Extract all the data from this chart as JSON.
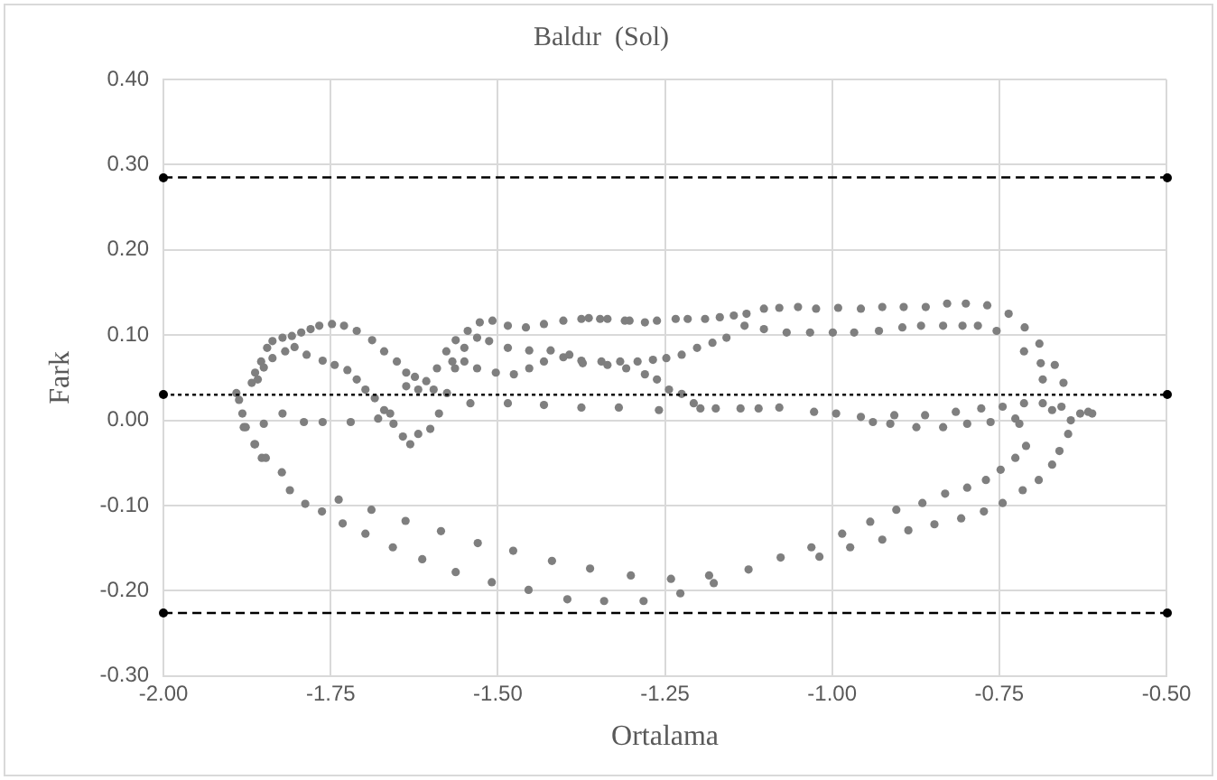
{
  "chart_data": {
    "type": "scatter",
    "title": "Baldır  (Sol)",
    "xlabel": "Ortalama",
    "ylabel": "Fark",
    "x": [
      -1.88,
      -1.864,
      -1.853,
      -1.823,
      -1.811,
      -1.788,
      -1.763,
      -1.738,
      -1.732,
      -1.698,
      -1.689,
      -1.657,
      -1.638,
      -1.613,
      -1.585,
      -1.563,
      -1.53,
      -1.509,
      -1.477,
      -1.454,
      -1.419,
      -1.396,
      -1.362,
      -1.341,
      -1.301,
      -1.282,
      -1.241,
      -1.227,
      -1.184,
      -1.177,
      -1.125,
      -1.077,
      -1.031,
      -1.019,
      -0.985,
      -0.973,
      -0.943,
      -0.925,
      -0.904,
      -0.886,
      -0.865,
      -0.847,
      -0.831,
      -0.807,
      -0.798,
      -0.773,
      -0.77,
      -0.745,
      -0.748,
      -0.726,
      -0.715,
      -0.71,
      -0.691,
      -0.671,
      -0.66,
      -0.647,
      -0.643,
      -0.629,
      -0.617,
      -0.611,
      -0.657,
      -0.671,
      -0.685,
      -0.685,
      -0.688,
      -0.69,
      -0.667,
      -0.654,
      -0.712,
      -0.713,
      -0.72,
      -0.736,
      -0.768,
      -0.8,
      -0.828,
      -0.86,
      -0.893,
      -0.925,
      -0.957,
      -0.991,
      -1.024,
      -1.051,
      -1.079,
      -1.102,
      -1.128,
      -1.147,
      -1.168,
      -1.19,
      -1.216,
      -1.234,
      -1.262,
      -1.28,
      -1.303,
      -1.336,
      -1.364,
      -0.754,
      -0.782,
      -0.805,
      -0.834,
      -0.867,
      -0.895,
      -0.93,
      -0.967,
      -0.999,
      -1.033,
      -1.068,
      -1.102,
      -1.131,
      -1.158,
      -1.179,
      -1.202,
      -1.225,
      -1.248,
      -1.268,
      -1.291,
      -1.317,
      -1.345,
      -1.244,
      -1.225,
      -1.207,
      -1.197,
      -1.174,
      -1.137,
      -1.11,
      -1.079,
      -1.027,
      -0.994,
      -0.957,
      -0.939,
      -0.913,
      -0.907,
      -0.874,
      -0.861,
      -0.834,
      -0.815,
      -0.798,
      -0.777,
      -0.763,
      -0.745,
      -0.726,
      -0.713,
      -1.373,
      -1.336,
      -1.308,
      -1.28,
      -1.262,
      -1.891,
      -1.887,
      -1.882,
      -1.877,
      -1.868,
      -1.863,
      -1.854,
      -1.845,
      -1.837,
      -1.822,
      -1.808,
      -1.794,
      -1.78,
      -1.767,
      -1.748,
      -1.73,
      -1.711,
      -1.688,
      -1.67,
      -1.651,
      -1.637,
      -1.624,
      -1.607,
      -1.591,
      -1.577,
      -1.563,
      -1.545,
      -1.527,
      -1.508,
      -1.485,
      -1.458,
      -1.431,
      -1.402,
      -1.375,
      -1.347,
      -1.31,
      -1.859,
      -1.85,
      -1.837,
      -1.818,
      -1.804,
      -1.786,
      -1.762,
      -1.744,
      -1.725,
      -1.711,
      -1.698,
      -1.684,
      -1.67,
      -1.656,
      -1.642,
      -1.631,
      -1.619,
      -1.601,
      -1.588,
      -1.576,
      -1.564,
      -1.55,
      -1.531,
      -1.513,
      -1.485,
      -1.453,
      -1.421,
      -1.393,
      -1.596,
      -1.568,
      -1.55,
      -1.531,
      -1.503,
      -1.476,
      -1.453,
      -1.431,
      -1.402,
      -1.375,
      -1.85,
      -1.822,
      -1.79,
      -1.762,
      -1.72,
      -1.679,
      -1.661,
      -1.637,
      -1.619,
      -1.541,
      -1.485,
      -1.431,
      -1.375,
      -1.319,
      -1.259,
      -1.863,
      -1.847
    ],
    "values": [
      -0.008,
      -0.028,
      -0.044,
      -0.061,
      -0.082,
      -0.098,
      -0.107,
      -0.093,
      -0.121,
      -0.133,
      -0.105,
      -0.149,
      -0.118,
      -0.163,
      -0.13,
      -0.178,
      -0.144,
      -0.19,
      -0.153,
      -0.199,
      -0.165,
      -0.21,
      -0.174,
      -0.212,
      -0.182,
      -0.212,
      -0.186,
      -0.203,
      -0.182,
      -0.191,
      -0.175,
      -0.161,
      -0.149,
      -0.16,
      -0.133,
      -0.149,
      -0.119,
      -0.14,
      -0.105,
      -0.129,
      -0.097,
      -0.122,
      -0.086,
      -0.115,
      -0.079,
      -0.107,
      -0.07,
      -0.097,
      -0.058,
      -0.044,
      -0.082,
      -0.03,
      -0.07,
      -0.052,
      -0.036,
      -0.016,
      0,
      0.008,
      0.01,
      0.008,
      0.016,
      0.012,
      0.02,
      0.048,
      0.067,
      0.09,
      0.065,
      0.044,
      0.109,
      0.081,
      -0.004,
      0.125,
      0.135,
      0.137,
      0.137,
      0.133,
      0.133,
      0.133,
      0.131,
      0.132,
      0.131,
      0.133,
      0.132,
      0.131,
      0.125,
      0.123,
      0.121,
      0.119,
      0.119,
      0.119,
      0.117,
      0.115,
      0.117,
      0.119,
      0.12,
      0.105,
      0.111,
      0.111,
      0.111,
      0.111,
      0.109,
      0.105,
      0.103,
      0.103,
      0.103,
      0.103,
      0.107,
      0.111,
      0.097,
      0.091,
      0.085,
      0.077,
      0.073,
      0.071,
      0.069,
      0.069,
      0.069,
      0.036,
      0.031,
      0.02,
      0.014,
      0.014,
      0.014,
      0.014,
      0.015,
      0.01,
      0.008,
      0.004,
      -0.002,
      -0.004,
      0.006,
      -0.008,
      0.006,
      -0.008,
      0.01,
      -0.004,
      0.014,
      -0.002,
      0.016,
      0.002,
      0.02,
      0.067,
      0.065,
      0.061,
      0.054,
      0.048,
      0.032,
      0.024,
      0.008,
      -0.008,
      0.044,
      0.056,
      0.069,
      0.085,
      0.093,
      0.097,
      0.099,
      0.103,
      0.107,
      0.111,
      0.113,
      0.111,
      0.105,
      0.094,
      0.081,
      0.069,
      0.056,
      0.051,
      0.046,
      0.061,
      0.081,
      0.094,
      0.105,
      0.115,
      0.117,
      0.111,
      0.109,
      0.113,
      0.117,
      0.119,
      0.119,
      0.117,
      0.048,
      0.062,
      0.073,
      0.081,
      0.086,
      0.077,
      0.07,
      0.065,
      0.059,
      0.048,
      0.036,
      0.026,
      0.012,
      -0.004,
      -0.019,
      -0.028,
      -0.016,
      -0.01,
      0.008,
      0.032,
      0.061,
      0.085,
      0.097,
      0.093,
      0.085,
      0.082,
      0.082,
      0.077,
      0.036,
      0.069,
      0.069,
      0.061,
      0.056,
      0.054,
      0.061,
      0.069,
      0.074,
      0.07,
      -0.004,
      0.008,
      -0.002,
      -0.002,
      -0.002,
      0.002,
      0.008,
      0.04,
      0.036,
      0.02,
      0.02,
      0.018,
      0.015,
      0.015,
      0.012,
      -0.028,
      -0.044
    ],
    "color": "#7f7f7f",
    "marker": "circle",
    "grid": true,
    "xlim": [
      -2,
      -0.5
    ],
    "xticks": [
      {
        "value": -2,
        "label": "-2.00"
      },
      {
        "value": -1.75,
        "label": "-1.75"
      },
      {
        "value": -1.5,
        "label": "-1.50"
      },
      {
        "value": -1.25,
        "label": "-1.25"
      },
      {
        "value": -1,
        "label": "-1.00"
      },
      {
        "value": -0.75,
        "label": "-0.75"
      },
      {
        "value": -0.5,
        "label": "-0.50"
      }
    ],
    "ylim": [
      -0.3,
      0.4
    ],
    "yticks": [
      {
        "value": -0.3,
        "label": "-0.30"
      },
      {
        "value": -0.2,
        "label": "-0.20"
      },
      {
        "value": -0.1,
        "label": "-0.10"
      },
      {
        "value": 0,
        "label": "0.00"
      },
      {
        "value": 0.1,
        "label": "0.10"
      },
      {
        "value": 0.2,
        "label": "0.20"
      },
      {
        "value": 0.3,
        "label": "0.30"
      },
      {
        "value": 0.4,
        "label": "0.40"
      }
    ],
    "ref_lines": [
      {
        "axis": "y",
        "value": 0.285,
        "color": "#000000",
        "line_style": "dashed"
      },
      {
        "axis": "y",
        "value": 0.03,
        "color": "#000000",
        "line_style": "dotted"
      },
      {
        "axis": "y",
        "value": -0.226,
        "color": "#000000",
        "line_style": "dashed"
      }
    ]
  }
}
